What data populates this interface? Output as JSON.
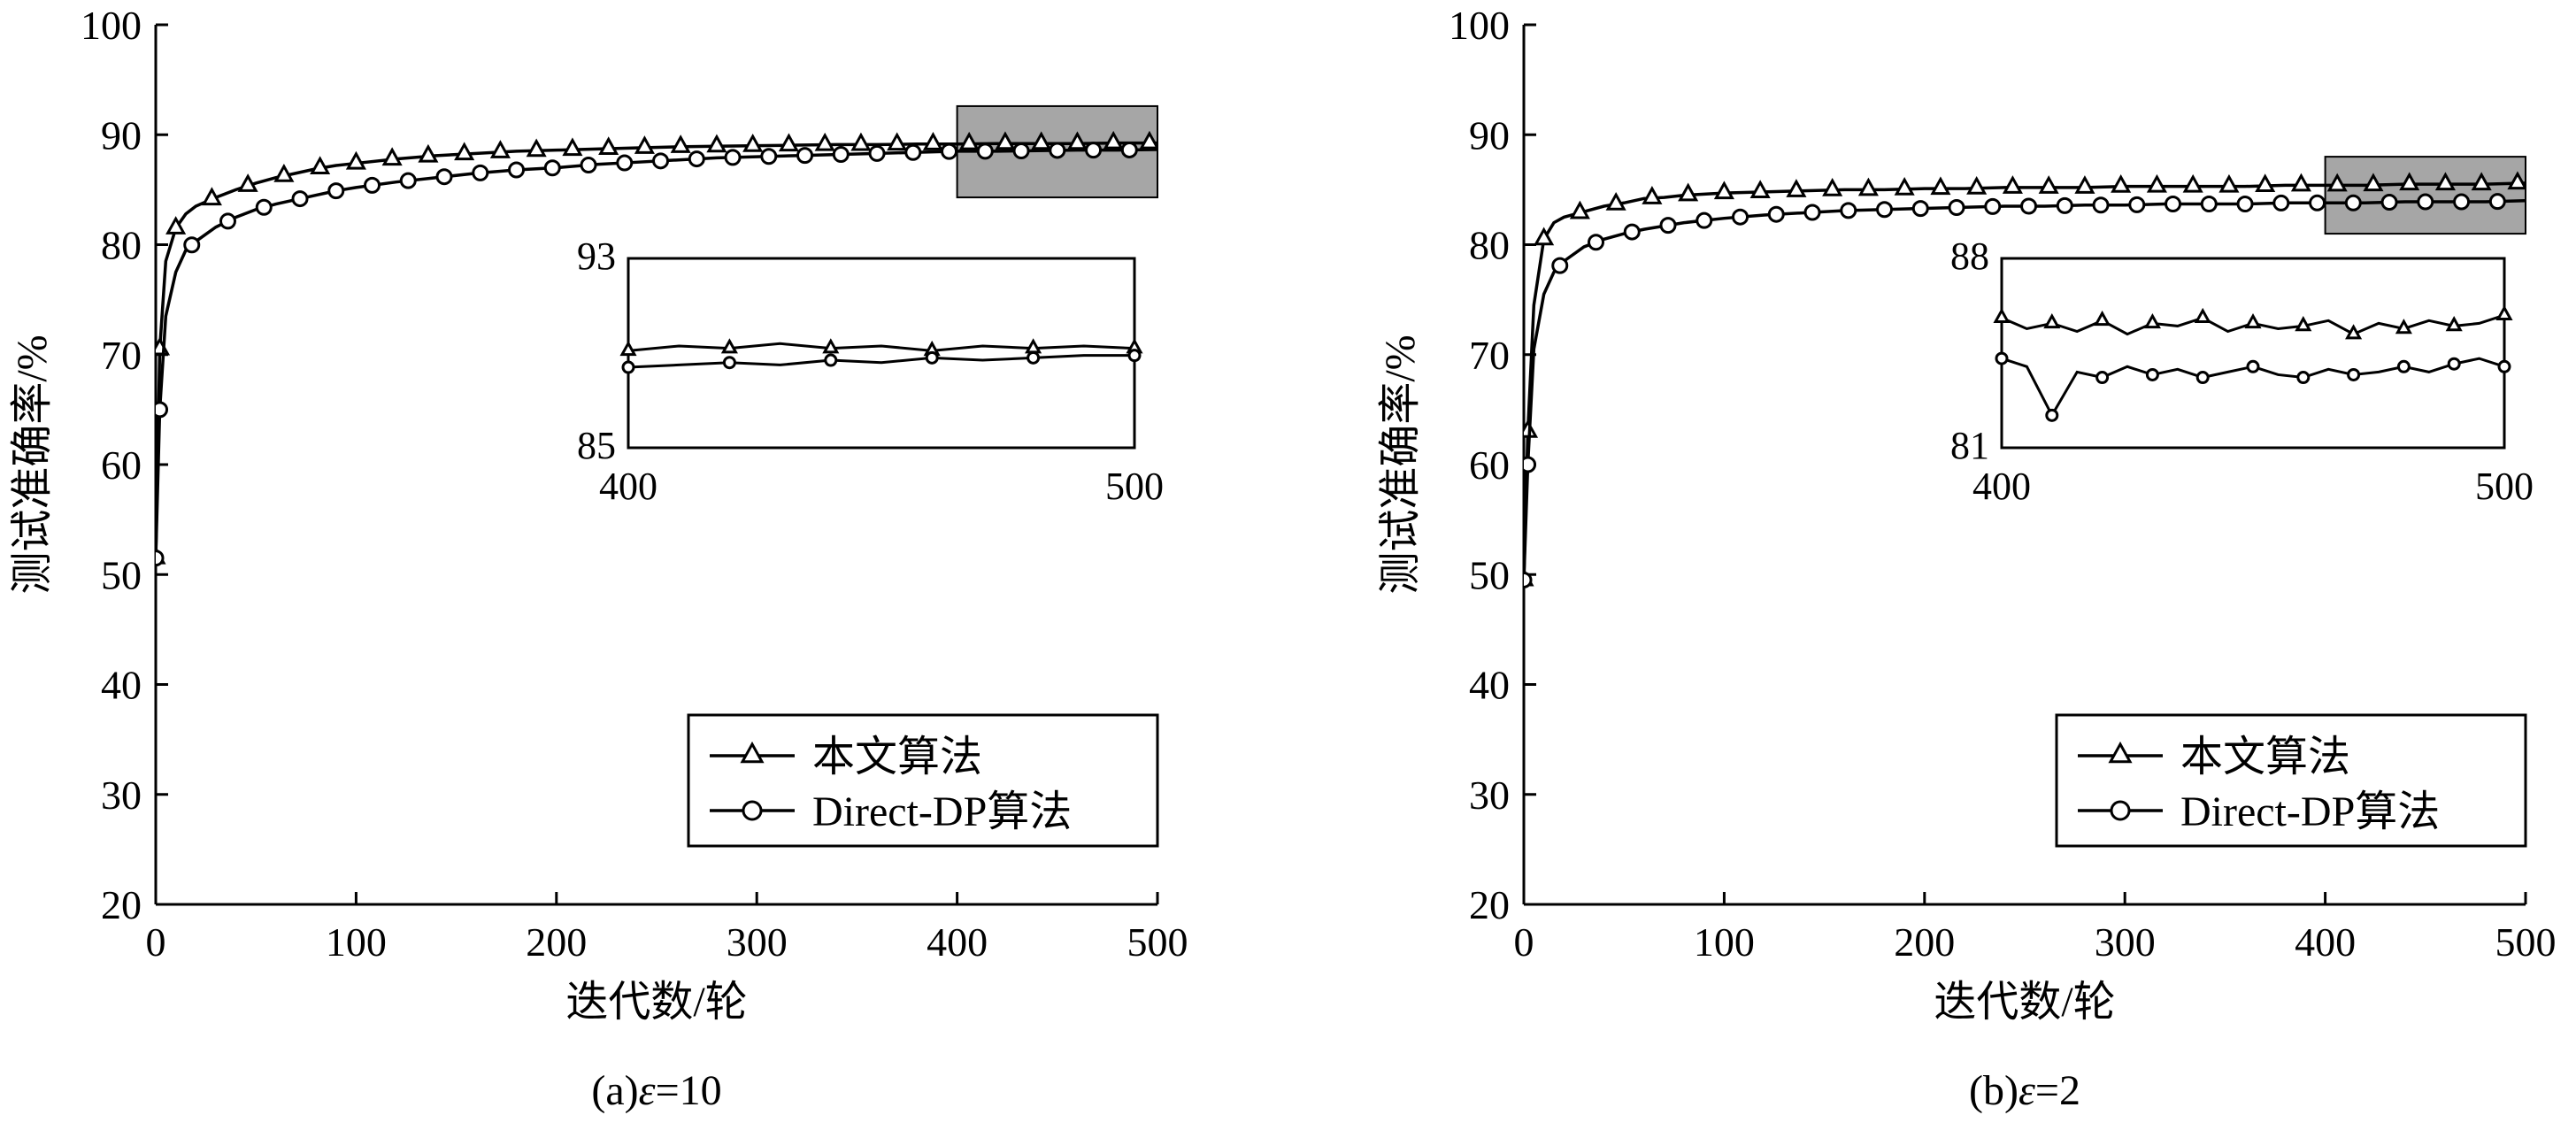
{
  "chart_data": [
    {
      "type": "line",
      "caption": "(a)ε=10",
      "caption_prefix": "(a)",
      "caption_symbol": "ε",
      "caption_value": "=10",
      "xlabel": "迭代数/轮",
      "ylabel": "测试准确率/%",
      "xlim": [
        0,
        500
      ],
      "ylim": [
        20,
        100
      ],
      "xticks": [
        "0",
        "100",
        "200",
        "300",
        "400",
        "500"
      ],
      "yticks": [
        "20",
        "30",
        "40",
        "50",
        "60",
        "70",
        "80",
        "90",
        "100"
      ],
      "grid": false,
      "legend_position": "bottom-right",
      "highlight_region": {
        "x": [
          400,
          500
        ],
        "y": [
          84.3,
          92.6
        ]
      },
      "series": [
        {
          "name": "本文算法",
          "marker": "triangle",
          "x": [
            0,
            2,
            5,
            10,
            15,
            20,
            30,
            40,
            50,
            60,
            70,
            80,
            90,
            100,
            120,
            140,
            160,
            180,
            200,
            220,
            240,
            260,
            280,
            300,
            320,
            340,
            360,
            380,
            400,
            420,
            440,
            460,
            480,
            500
          ],
          "y": [
            51.5,
            70.5,
            78.5,
            81.5,
            82.8,
            83.5,
            84.3,
            85.0,
            85.6,
            86.1,
            86.5,
            86.9,
            87.2,
            87.4,
            87.8,
            88.1,
            88.3,
            88.5,
            88.6,
            88.7,
            88.8,
            88.9,
            88.95,
            89.0,
            89.05,
            89.1,
            89.1,
            89.15,
            89.15,
            89.2,
            89.2,
            89.2,
            89.25,
            89.25
          ]
        },
        {
          "name": "Direct-DP算法",
          "marker": "circle",
          "x": [
            0,
            2,
            5,
            10,
            15,
            20,
            30,
            40,
            50,
            60,
            70,
            80,
            90,
            100,
            120,
            140,
            160,
            180,
            200,
            220,
            240,
            260,
            280,
            300,
            320,
            340,
            360,
            380,
            400,
            420,
            440,
            460,
            480,
            500
          ],
          "y": [
            51.5,
            65.0,
            73.5,
            77.5,
            79.5,
            80.3,
            81.6,
            82.5,
            83.2,
            83.7,
            84.1,
            84.5,
            84.9,
            85.2,
            85.7,
            86.1,
            86.5,
            86.8,
            87.0,
            87.3,
            87.5,
            87.7,
            87.9,
            88.0,
            88.1,
            88.2,
            88.3,
            88.4,
            88.5,
            88.5,
            88.55,
            88.6,
            88.6,
            88.65
          ]
        }
      ],
      "inset": {
        "xlim": [
          400,
          500
        ],
        "ylim": [
          85,
          93
        ],
        "xticks": [
          "400",
          "500"
        ],
        "yticks": [
          "85",
          "93"
        ],
        "series": [
          {
            "name": "本文算法",
            "x": [
              400,
              410,
              420,
              430,
              440,
              450,
              460,
              470,
              480,
              490,
              500
            ],
            "y": [
              89.1,
              89.3,
              89.2,
              89.4,
              89.2,
              89.3,
              89.1,
              89.3,
              89.2,
              89.3,
              89.2
            ]
          },
          {
            "name": "Direct-DP算法",
            "x": [
              400,
              410,
              420,
              430,
              440,
              450,
              460,
              470,
              480,
              490,
              500
            ],
            "y": [
              88.4,
              88.5,
              88.6,
              88.5,
              88.7,
              88.6,
              88.8,
              88.7,
              88.8,
              88.9,
              88.9
            ]
          }
        ]
      }
    },
    {
      "type": "line",
      "caption": "(b)ε=2",
      "caption_prefix": "(b)",
      "caption_symbol": "ε",
      "caption_value": "=2",
      "xlabel": "迭代数/轮",
      "ylabel": "测试准确率/%",
      "xlim": [
        0,
        500
      ],
      "ylim": [
        20,
        100
      ],
      "xticks": [
        "0",
        "100",
        "200",
        "300",
        "400",
        "500"
      ],
      "yticks": [
        "20",
        "30",
        "40",
        "50",
        "60",
        "70",
        "80",
        "90",
        "100"
      ],
      "grid": false,
      "legend_position": "bottom-right",
      "highlight_region": {
        "x": [
          400,
          500
        ],
        "y": [
          81.0,
          88.0
        ]
      },
      "series": [
        {
          "name": "本文算法",
          "marker": "triangle",
          "x": [
            0,
            2,
            5,
            10,
            15,
            20,
            30,
            40,
            50,
            60,
            70,
            80,
            90,
            100,
            120,
            140,
            160,
            180,
            200,
            220,
            240,
            260,
            280,
            300,
            320,
            340,
            360,
            380,
            400,
            420,
            440,
            460,
            480,
            500
          ],
          "y": [
            49.5,
            63.0,
            74.5,
            80.5,
            82.0,
            82.5,
            83.0,
            83.5,
            83.8,
            84.2,
            84.3,
            84.5,
            84.6,
            84.7,
            84.8,
            84.9,
            85.0,
            85.0,
            85.1,
            85.1,
            85.2,
            85.2,
            85.2,
            85.3,
            85.3,
            85.3,
            85.3,
            85.4,
            85.4,
            85.4,
            85.5,
            85.5,
            85.5,
            85.6
          ]
        },
        {
          "name": "Direct-DP算法",
          "marker": "circle",
          "x": [
            0,
            2,
            5,
            10,
            15,
            20,
            30,
            40,
            50,
            60,
            70,
            80,
            90,
            100,
            120,
            140,
            160,
            180,
            200,
            220,
            240,
            260,
            280,
            300,
            320,
            340,
            360,
            380,
            400,
            420,
            440,
            460,
            480,
            500
          ],
          "y": [
            49.5,
            60.0,
            70.5,
            75.5,
            77.5,
            78.5,
            79.8,
            80.5,
            81.0,
            81.4,
            81.7,
            82.0,
            82.2,
            82.4,
            82.7,
            82.9,
            83.1,
            83.2,
            83.3,
            83.4,
            83.5,
            83.5,
            83.6,
            83.6,
            83.7,
            83.7,
            83.7,
            83.8,
            83.8,
            83.8,
            83.9,
            83.9,
            83.9,
            84.0
          ]
        }
      ],
      "inset": {
        "xlim": [
          400,
          500
        ],
        "ylim": [
          81,
          88
        ],
        "xticks": [
          "400",
          "500"
        ],
        "yticks": [
          "81",
          "88"
        ],
        "series": [
          {
            "name": "本文算法",
            "x": [
              400,
              405,
              410,
              415,
              420,
              425,
              430,
              435,
              440,
              445,
              450,
              455,
              460,
              465,
              470,
              475,
              480,
              485,
              490,
              495,
              500
            ],
            "y": [
              85.8,
              85.4,
              85.6,
              85.3,
              85.7,
              85.2,
              85.6,
              85.5,
              85.8,
              85.3,
              85.6,
              85.4,
              85.5,
              85.7,
              85.2,
              85.6,
              85.4,
              85.7,
              85.5,
              85.6,
              85.9
            ]
          },
          {
            "name": "Direct-DP算法",
            "x": [
              400,
              405,
              410,
              415,
              420,
              425,
              430,
              435,
              440,
              445,
              450,
              455,
              460,
              465,
              470,
              475,
              480,
              485,
              490,
              495,
              500
            ],
            "y": [
              84.3,
              84.0,
              82.2,
              83.8,
              83.6,
              84.0,
              83.7,
              83.9,
              83.6,
              83.8,
              84.0,
              83.7,
              83.6,
              83.9,
              83.7,
              83.8,
              84.0,
              83.8,
              84.1,
              84.3,
              84.0
            ]
          }
        ]
      }
    }
  ]
}
